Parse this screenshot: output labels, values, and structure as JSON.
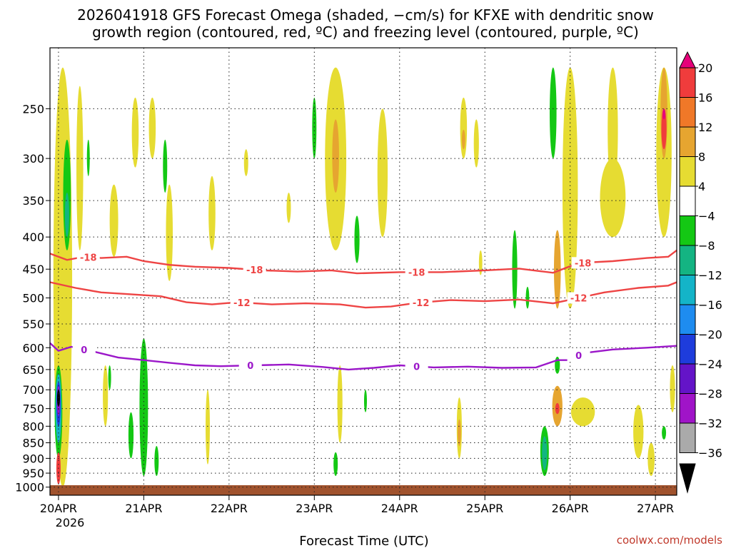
{
  "chart_data": {
    "type": "heatmap",
    "title_line1": "2026041918 GFS Forecast Omega (shaded, −cm/s) for KFXE with dendritic snow",
    "title_line2": "growth region (contoured, red, ºC) and freezing level (contoured, purple, ºC)",
    "xlabel": "Forecast Time (UTC)",
    "ylabel": "",
    "credit": "coolwx.com/models",
    "x_ticks": [
      {
        "day": 0,
        "label": "20APR"
      },
      {
        "day": 1,
        "label": "21APR"
      },
      {
        "day": 2,
        "label": "22APR"
      },
      {
        "day": 3,
        "label": "23APR"
      },
      {
        "day": 4,
        "label": "24APR"
      },
      {
        "day": 5,
        "label": "25APR"
      },
      {
        "day": 6,
        "label": "26APR"
      },
      {
        "day": 7,
        "label": "27APR"
      }
    ],
    "x_year_label": "2026",
    "xlim_days": [
      -0.1,
      7.25
    ],
    "y_ticks": [
      250,
      300,
      350,
      400,
      450,
      500,
      550,
      600,
      650,
      700,
      750,
      800,
      850,
      900,
      950,
      1000
    ],
    "y_axis": "pressure (hPa), log scale",
    "ylim_hpa": [
      200,
      1030
    ],
    "colorbar": {
      "labels": [
        "20",
        "16",
        "12",
        "8",
        "4",
        "−4",
        "−8",
        "−12",
        "−16",
        "−20",
        "−24",
        "−28",
        "−32",
        "−36"
      ],
      "bins": [
        {
          "range": "> 20",
          "color": "#e6007a"
        },
        {
          "range": "16 to 20",
          "color": "#f03c3c"
        },
        {
          "range": "12 to 16",
          "color": "#f07828"
        },
        {
          "range": "8 to 12",
          "color": "#e6a530"
        },
        {
          "range": "4 to 8",
          "color": "#e6dc32"
        },
        {
          "range": "-4 to 4",
          "color": "#ffffff"
        },
        {
          "range": "-8 to -4",
          "color": "#14c814"
        },
        {
          "range": "-12 to -8",
          "color": "#14b482"
        },
        {
          "range": "-16 to -12",
          "color": "#14b4c8"
        },
        {
          "range": "-20 to -16",
          "color": "#1e8cf0"
        },
        {
          "range": "-24 to -20",
          "color": "#1e3cdc"
        },
        {
          "range": "-28 to -24",
          "color": "#6414c8"
        },
        {
          "range": "-32 to -28",
          "color": "#a014c8"
        },
        {
          "range": "-36 to -32",
          "color": "#aaaaaa"
        },
        {
          "range": "< -36",
          "color": "#000000"
        }
      ]
    },
    "contours": [
      {
        "name": "minus18",
        "label": "-18",
        "color": "#ee4444",
        "points": [
          [
            -0.1,
            425
          ],
          [
            0.1,
            435
          ],
          [
            0.3,
            430
          ],
          [
            0.5,
            432
          ],
          [
            0.8,
            430
          ],
          [
            1.0,
            437
          ],
          [
            1.3,
            443
          ],
          [
            1.6,
            446
          ],
          [
            2.0,
            448
          ],
          [
            2.4,
            452
          ],
          [
            2.8,
            454
          ],
          [
            3.2,
            452
          ],
          [
            3.5,
            457
          ],
          [
            4.0,
            455
          ],
          [
            4.5,
            455
          ],
          [
            5.0,
            452
          ],
          [
            5.4,
            449
          ],
          [
            5.8,
            456
          ],
          [
            6.1,
            440
          ],
          [
            6.5,
            437
          ],
          [
            6.9,
            432
          ],
          [
            7.15,
            430
          ],
          [
            7.25,
            420
          ]
        ],
        "label_days": [
          0.35,
          2.3,
          4.2,
          6.15
        ]
      },
      {
        "name": "minus12",
        "label": "-12",
        "color": "#ee4444",
        "points": [
          [
            -0.1,
            472
          ],
          [
            0.2,
            482
          ],
          [
            0.5,
            490
          ],
          [
            0.8,
            493
          ],
          [
            1.2,
            497
          ],
          [
            1.5,
            508
          ],
          [
            1.8,
            512
          ],
          [
            2.1,
            508
          ],
          [
            2.5,
            512
          ],
          [
            2.9,
            510
          ],
          [
            3.3,
            512
          ],
          [
            3.6,
            518
          ],
          [
            3.9,
            516
          ],
          [
            4.2,
            509
          ],
          [
            4.6,
            504
          ],
          [
            5.0,
            506
          ],
          [
            5.4,
            503
          ],
          [
            5.8,
            510
          ],
          [
            6.1,
            500
          ],
          [
            6.4,
            490
          ],
          [
            6.8,
            482
          ],
          [
            7.15,
            478
          ],
          [
            7.25,
            472
          ]
        ],
        "label_days": [
          2.15,
          4.25,
          6.1
        ]
      },
      {
        "name": "freezing",
        "label": "0",
        "color": "#9b17c9",
        "points": [
          [
            -0.1,
            590
          ],
          [
            0.0,
            607
          ],
          [
            0.15,
            598
          ],
          [
            0.4,
            608
          ],
          [
            0.7,
            622
          ],
          [
            1.0,
            628
          ],
          [
            1.3,
            634
          ],
          [
            1.6,
            640
          ],
          [
            1.9,
            642
          ],
          [
            2.3,
            640
          ],
          [
            2.7,
            638
          ],
          [
            3.1,
            644
          ],
          [
            3.4,
            650
          ],
          [
            3.7,
            646
          ],
          [
            4.0,
            640
          ],
          [
            4.4,
            645
          ],
          [
            4.8,
            643
          ],
          [
            5.2,
            646
          ],
          [
            5.6,
            645
          ],
          [
            5.85,
            628
          ],
          [
            6.0,
            628
          ],
          [
            6.15,
            612
          ],
          [
            6.5,
            604
          ],
          [
            6.9,
            600
          ],
          [
            7.25,
            596
          ]
        ],
        "label_days": [
          0.3,
          2.25,
          4.2,
          6.1
        ]
      }
    ],
    "regions": [
      {
        "day": 0.05,
        "p_top": 215,
        "p_bot": 1000,
        "width": 0.22,
        "level": "4 to 8"
      },
      {
        "day": 0.1,
        "p_top": 280,
        "p_bot": 420,
        "width": 0.09,
        "level": "-8 to -4"
      },
      {
        "day": 0.1,
        "p_top": 340,
        "p_bot": 400,
        "width": 0.05,
        "level": "-12 to -8"
      },
      {
        "day": 0.0,
        "p_top": 640,
        "p_bot": 900,
        "width": 0.09,
        "level": "-8 to -4"
      },
      {
        "day": 0.0,
        "p_top": 660,
        "p_bot": 850,
        "width": 0.07,
        "level": "-16 to -12"
      },
      {
        "day": 0.0,
        "p_top": 680,
        "p_bot": 800,
        "width": 0.05,
        "level": "-24 to -20"
      },
      {
        "day": 0.0,
        "p_top": 690,
        "p_bot": 770,
        "width": 0.035,
        "level": "-32 to -28"
      },
      {
        "day": 0.0,
        "p_top": 700,
        "p_bot": 745,
        "width": 0.02,
        "level": "< -36"
      },
      {
        "day": 0.0,
        "p_top": 880,
        "p_bot": 990,
        "width": 0.05,
        "level": "16 to 20"
      },
      {
        "day": 0.25,
        "p_top": 230,
        "p_bot": 420,
        "width": 0.08,
        "level": "4 to 8"
      },
      {
        "day": 0.35,
        "p_top": 280,
        "p_bot": 320,
        "width": 0.03,
        "level": "-8 to -4"
      },
      {
        "day": 0.65,
        "p_top": 330,
        "p_bot": 430,
        "width": 0.1,
        "level": "4 to 8"
      },
      {
        "day": 0.9,
        "p_top": 240,
        "p_bot": 310,
        "width": 0.08,
        "level": "4 to 8"
      },
      {
        "day": 1.1,
        "p_top": 240,
        "p_bot": 300,
        "width": 0.08,
        "level": "4 to 8"
      },
      {
        "day": 1.25,
        "p_top": 280,
        "p_bot": 340,
        "width": 0.05,
        "level": "-8 to -4"
      },
      {
        "day": 1.3,
        "p_top": 330,
        "p_bot": 470,
        "width": 0.08,
        "level": "4 to 8"
      },
      {
        "day": 1.8,
        "p_top": 320,
        "p_bot": 420,
        "width": 0.08,
        "level": "4 to 8"
      },
      {
        "day": 1.0,
        "p_top": 580,
        "p_bot": 960,
        "width": 0.1,
        "level": "-8 to -4"
      },
      {
        "day": 0.85,
        "p_top": 760,
        "p_bot": 900,
        "width": 0.06,
        "level": "-8 to -4"
      },
      {
        "day": 1.15,
        "p_top": 860,
        "p_bot": 960,
        "width": 0.05,
        "level": "-8 to -4"
      },
      {
        "day": 0.55,
        "p_top": 640,
        "p_bot": 800,
        "width": 0.06,
        "level": "4 to 8"
      },
      {
        "day": 0.6,
        "p_top": 640,
        "p_bot": 700,
        "width": 0.03,
        "level": "-8 to -4"
      },
      {
        "day": 1.75,
        "p_top": 700,
        "p_bot": 920,
        "width": 0.05,
        "level": "4 to 8"
      },
      {
        "day": 2.2,
        "p_top": 290,
        "p_bot": 320,
        "width": 0.05,
        "level": "4 to 8"
      },
      {
        "day": 2.7,
        "p_top": 340,
        "p_bot": 380,
        "width": 0.05,
        "level": "4 to 8"
      },
      {
        "day": 3.0,
        "p_top": 240,
        "p_bot": 300,
        "width": 0.05,
        "level": "-8 to -4"
      },
      {
        "day": 3.25,
        "p_top": 215,
        "p_bot": 420,
        "width": 0.25,
        "level": "4 to 8"
      },
      {
        "day": 3.25,
        "p_top": 260,
        "p_bot": 340,
        "width": 0.08,
        "level": "8 to 12"
      },
      {
        "day": 3.5,
        "p_top": 370,
        "p_bot": 440,
        "width": 0.06,
        "level": "-8 to -4"
      },
      {
        "day": 3.3,
        "p_top": 640,
        "p_bot": 850,
        "width": 0.06,
        "level": "4 to 8"
      },
      {
        "day": 3.25,
        "p_top": 880,
        "p_bot": 960,
        "width": 0.05,
        "level": "-8 to -4"
      },
      {
        "day": 3.6,
        "p_top": 700,
        "p_bot": 760,
        "width": 0.03,
        "level": "-8 to -4"
      },
      {
        "day": 3.8,
        "p_top": 250,
        "p_bot": 400,
        "width": 0.12,
        "level": "4 to 8"
      },
      {
        "day": 4.75,
        "p_top": 240,
        "p_bot": 300,
        "width": 0.08,
        "level": "4 to 8"
      },
      {
        "day": 4.9,
        "p_top": 260,
        "p_bot": 310,
        "width": 0.06,
        "level": "4 to 8"
      },
      {
        "day": 4.75,
        "p_top": 270,
        "p_bot": 290,
        "width": 0.04,
        "level": "8 to 12"
      },
      {
        "day": 4.7,
        "p_top": 720,
        "p_bot": 900,
        "width": 0.06,
        "level": "4 to 8"
      },
      {
        "day": 4.7,
        "p_top": 780,
        "p_bot": 860,
        "width": 0.04,
        "level": "8 to 12"
      },
      {
        "day": 4.95,
        "p_top": 420,
        "p_bot": 460,
        "width": 0.04,
        "level": "4 to 8"
      },
      {
        "day": 5.35,
        "p_top": 390,
        "p_bot": 520,
        "width": 0.06,
        "level": "-8 to -4"
      },
      {
        "day": 5.5,
        "p_top": 480,
        "p_bot": 520,
        "width": 0.04,
        "level": "-8 to -4"
      },
      {
        "day": 5.8,
        "p_top": 215,
        "p_bot": 300,
        "width": 0.08,
        "level": "-8 to -4"
      },
      {
        "day": 6.0,
        "p_top": 215,
        "p_bot": 520,
        "width": 0.18,
        "level": "4 to 8"
      },
      {
        "day": 6.5,
        "p_top": 215,
        "p_bot": 340,
        "width": 0.12,
        "level": "4 to 8"
      },
      {
        "day": 6.5,
        "p_top": 300,
        "p_bot": 400,
        "width": 0.3,
        "level": "4 to 8"
      },
      {
        "day": 7.1,
        "p_top": 215,
        "p_bot": 400,
        "width": 0.18,
        "level": "4 to 8"
      },
      {
        "day": 7.1,
        "p_top": 215,
        "p_bot": 300,
        "width": 0.08,
        "level": "8 to 12"
      },
      {
        "day": 7.1,
        "p_top": 250,
        "p_bot": 290,
        "width": 0.06,
        "level": "16 to 20"
      },
      {
        "day": 7.1,
        "p_top": 250,
        "p_bot": 260,
        "width": 0.03,
        "level": "> 20"
      },
      {
        "day": 5.85,
        "p_top": 390,
        "p_bot": 520,
        "width": 0.08,
        "level": "8 to 12"
      },
      {
        "day": 5.85,
        "p_top": 690,
        "p_bot": 800,
        "width": 0.12,
        "level": "8 to 12"
      },
      {
        "day": 5.85,
        "p_top": 735,
        "p_bot": 765,
        "width": 0.05,
        "level": "16 to 20"
      },
      {
        "day": 6.15,
        "p_top": 720,
        "p_bot": 800,
        "width": 0.28,
        "level": "4 to 8"
      },
      {
        "day": 6.8,
        "p_top": 740,
        "p_bot": 900,
        "width": 0.12,
        "level": "4 to 8"
      },
      {
        "day": 6.95,
        "p_top": 850,
        "p_bot": 960,
        "width": 0.08,
        "level": "4 to 8"
      },
      {
        "day": 5.7,
        "p_top": 800,
        "p_bot": 960,
        "width": 0.1,
        "level": "-8 to -4"
      },
      {
        "day": 5.7,
        "p_top": 830,
        "p_bot": 940,
        "width": 0.06,
        "level": "-12 to -8"
      },
      {
        "day": 5.85,
        "p_top": 620,
        "p_bot": 660,
        "width": 0.06,
        "level": "-8 to -4"
      },
      {
        "day": 7.1,
        "p_top": 800,
        "p_bot": 840,
        "width": 0.05,
        "level": "-8 to -4"
      },
      {
        "day": 7.2,
        "p_top": 640,
        "p_bot": 760,
        "width": 0.06,
        "level": "4 to 8"
      }
    ]
  }
}
